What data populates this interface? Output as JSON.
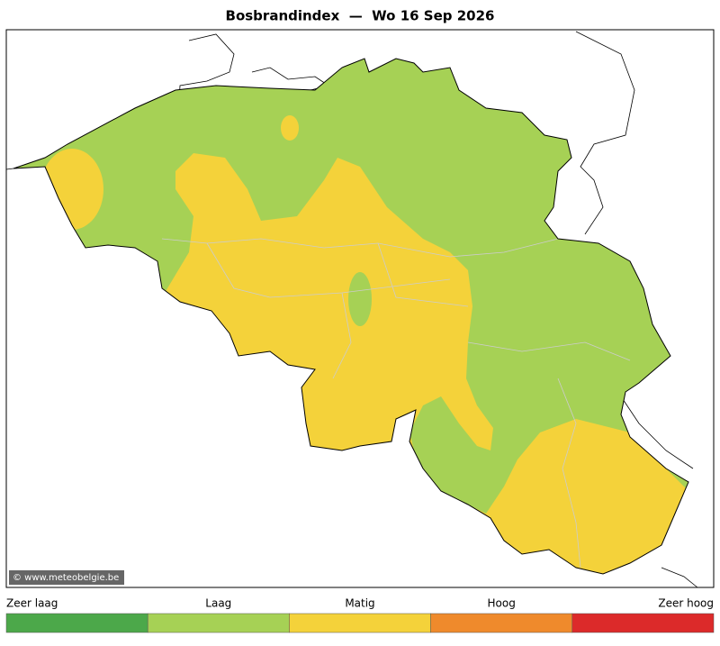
{
  "title": "Bosbrandindex  —  Wo 16 Sep 2026",
  "credit": "© www.meteobelgie.be",
  "legend": [
    {
      "label": "Zeer laag",
      "color": "#4ca84a"
    },
    {
      "label": "Laag",
      "color": "#a6d155"
    },
    {
      "label": "Matig",
      "color": "#f4d23a"
    },
    {
      "label": "Hoog",
      "color": "#ef8a2c"
    },
    {
      "label": "Zeer hoog",
      "color": "#dc2a2a"
    }
  ]
}
